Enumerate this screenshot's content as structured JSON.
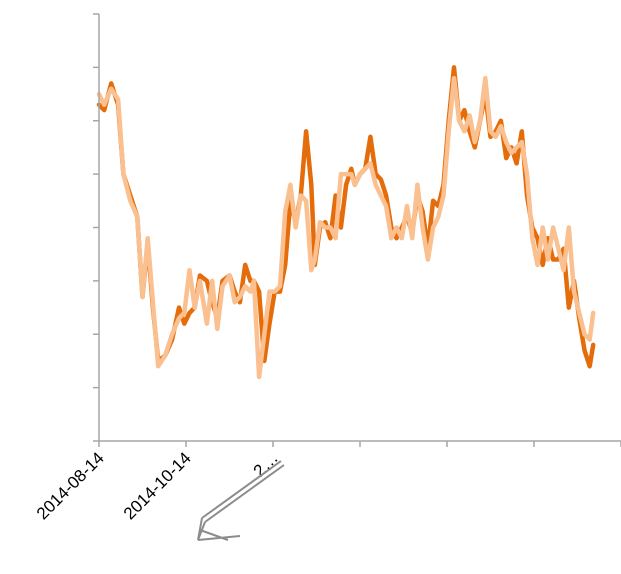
{
  "chart_data": {
    "type": "line",
    "title": "",
    "xlabel": "",
    "ylabel": "",
    "grid": false,
    "legend": "none",
    "x_tick_labels": [
      "2014-08-14",
      "2014-10-14",
      "2…"
    ],
    "x_range": [
      0,
      300
    ],
    "ylim": [
      0,
      80
    ],
    "y_tick_count": 9,
    "x_tick_count": 7,
    "series": [
      {
        "color": "#e46c0a",
        "points": [
          [
            0,
            63
          ],
          [
            3,
            62
          ],
          [
            7,
            67
          ],
          [
            11,
            63
          ],
          [
            14,
            50
          ],
          [
            18,
            46
          ],
          [
            22,
            42
          ],
          [
            25,
            27
          ],
          [
            28,
            37
          ],
          [
            31,
            25
          ],
          [
            34,
            15
          ],
          [
            38,
            16
          ],
          [
            42,
            19
          ],
          [
            46,
            25
          ],
          [
            49,
            22
          ],
          [
            52,
            24
          ],
          [
            55,
            25
          ],
          [
            58,
            31
          ],
          [
            62,
            30
          ],
          [
            65,
            26
          ],
          [
            68,
            23
          ],
          [
            71,
            30
          ],
          [
            75,
            31
          ],
          [
            78,
            28
          ],
          [
            81,
            26
          ],
          [
            84,
            33
          ],
          [
            87,
            30
          ],
          [
            89,
            30
          ],
          [
            92,
            28
          ],
          [
            95,
            15
          ],
          [
            98,
            22
          ],
          [
            101,
            28
          ],
          [
            104,
            28
          ],
          [
            107,
            33
          ],
          [
            110,
            45
          ],
          [
            113,
            41
          ],
          [
            116,
            46
          ],
          [
            119,
            58
          ],
          [
            122,
            48
          ],
          [
            124,
            33
          ],
          [
            127,
            40
          ],
          [
            130,
            41
          ],
          [
            133,
            38
          ],
          [
            136,
            46
          ],
          [
            139,
            40
          ],
          [
            142,
            48
          ],
          [
            145,
            51
          ],
          [
            147,
            48
          ],
          [
            150,
            50
          ],
          [
            153,
            51
          ],
          [
            156,
            57
          ],
          [
            159,
            50
          ],
          [
            162,
            49
          ],
          [
            165,
            46
          ],
          [
            168,
            40
          ],
          [
            171,
            38
          ],
          [
            174,
            40
          ],
          [
            177,
            42
          ],
          [
            180,
            39
          ],
          [
            183,
            46
          ],
          [
            186,
            43
          ],
          [
            189,
            36
          ],
          [
            192,
            45
          ],
          [
            195,
            44
          ],
          [
            198,
            48
          ],
          [
            201,
            60
          ],
          [
            204,
            70
          ],
          [
            207,
            60
          ],
          [
            210,
            62
          ],
          [
            213,
            58
          ],
          [
            216,
            55
          ],
          [
            219,
            60
          ],
          [
            222,
            65
          ],
          [
            225,
            57
          ],
          [
            228,
            58
          ],
          [
            231,
            60
          ],
          [
            234,
            53
          ],
          [
            237,
            55
          ],
          [
            240,
            52
          ],
          [
            243,
            58
          ],
          [
            246,
            46
          ],
          [
            249,
            40
          ],
          [
            252,
            38
          ],
          [
            255,
            33
          ],
          [
            258,
            38
          ],
          [
            261,
            34
          ],
          [
            264,
            34
          ],
          [
            267,
            36
          ],
          [
            270,
            25
          ],
          [
            273,
            30
          ],
          [
            276,
            23
          ],
          [
            279,
            17
          ],
          [
            282,
            14
          ],
          [
            284,
            18
          ]
        ]
      },
      {
        "color": "#fac090",
        "points": [
          [
            0,
            65
          ],
          [
            3,
            63
          ],
          [
            7,
            66
          ],
          [
            11,
            64
          ],
          [
            14,
            50
          ],
          [
            18,
            45
          ],
          [
            22,
            42
          ],
          [
            25,
            27
          ],
          [
            28,
            38
          ],
          [
            31,
            26
          ],
          [
            34,
            14
          ],
          [
            38,
            16
          ],
          [
            42,
            20
          ],
          [
            46,
            23
          ],
          [
            49,
            24
          ],
          [
            52,
            32
          ],
          [
            55,
            25
          ],
          [
            58,
            30
          ],
          [
            62,
            22
          ],
          [
            65,
            30
          ],
          [
            68,
            21
          ],
          [
            71,
            29
          ],
          [
            75,
            31
          ],
          [
            78,
            26
          ],
          [
            81,
            27
          ],
          [
            84,
            29
          ],
          [
            87,
            28
          ],
          [
            89,
            30
          ],
          [
            92,
            12
          ],
          [
            95,
            20
          ],
          [
            98,
            28
          ],
          [
            101,
            28
          ],
          [
            104,
            29
          ],
          [
            107,
            43
          ],
          [
            110,
            48
          ],
          [
            113,
            40
          ],
          [
            116,
            46
          ],
          [
            119,
            45
          ],
          [
            122,
            32
          ],
          [
            124,
            34
          ],
          [
            127,
            41
          ],
          [
            130,
            40
          ],
          [
            133,
            40
          ],
          [
            136,
            38
          ],
          [
            139,
            50
          ],
          [
            142,
            50
          ],
          [
            145,
            50
          ],
          [
            147,
            48
          ],
          [
            150,
            50
          ],
          [
            153,
            51
          ],
          [
            156,
            52
          ],
          [
            159,
            48
          ],
          [
            162,
            46
          ],
          [
            165,
            44
          ],
          [
            168,
            38
          ],
          [
            171,
            40
          ],
          [
            174,
            38
          ],
          [
            177,
            44
          ],
          [
            180,
            38
          ],
          [
            183,
            48
          ],
          [
            186,
            40
          ],
          [
            189,
            34
          ],
          [
            192,
            40
          ],
          [
            195,
            42
          ],
          [
            198,
            46
          ],
          [
            201,
            58
          ],
          [
            204,
            68
          ],
          [
            207,
            60
          ],
          [
            210,
            58
          ],
          [
            213,
            61
          ],
          [
            216,
            56
          ],
          [
            219,
            60
          ],
          [
            222,
            68
          ],
          [
            225,
            58
          ],
          [
            228,
            57
          ],
          [
            231,
            59
          ],
          [
            234,
            56
          ],
          [
            237,
            54
          ],
          [
            240,
            55
          ],
          [
            243,
            56
          ],
          [
            246,
            50
          ],
          [
            249,
            38
          ],
          [
            252,
            33
          ],
          [
            255,
            40
          ],
          [
            258,
            34
          ],
          [
            261,
            40
          ],
          [
            264,
            36
          ],
          [
            267,
            32
          ],
          [
            270,
            40
          ],
          [
            273,
            28
          ],
          [
            276,
            24
          ],
          [
            279,
            20
          ],
          [
            282,
            19
          ],
          [
            284,
            24
          ]
        ]
      }
    ]
  }
}
